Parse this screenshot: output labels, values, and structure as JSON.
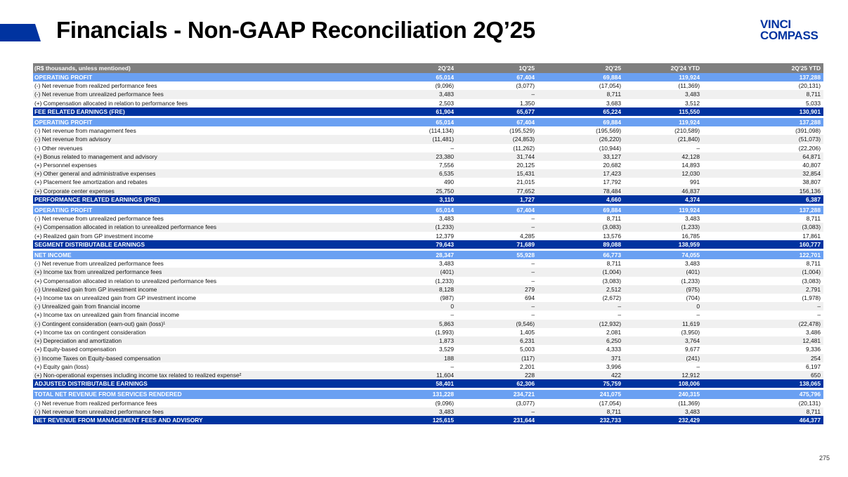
{
  "title": "Financials - Non-GAAP Reconciliation 2Q’25",
  "logo": {
    "line1": "VINCI",
    "line2": "COMPASS"
  },
  "page_number": "275",
  "colors": {
    "brand": "#0033a0",
    "highlight": "#6aa0f2",
    "header": "#7f7f7f"
  },
  "table": {
    "headers": [
      "(R$ thousands, unless mentioned)",
      "2Q'24",
      "1Q'25",
      "2Q'25",
      "2Q'24 YTD",
      "2Q'25 YTD"
    ],
    "rows": [
      {
        "type": "hl",
        "cells": [
          "OPERATING PROFIT",
          "65,014",
          "67,404",
          "69,884",
          "119,924",
          "137,288"
        ]
      },
      {
        "type": "odd",
        "cells": [
          "(-) Net revenue from realized performance fees",
          "(9,096)",
          "(3,077)",
          "(17,054)",
          "(11,369)",
          "(20,131)"
        ]
      },
      {
        "type": "even",
        "cells": [
          "(-) Net revenue from unrealized performance fees",
          "3,483",
          "–",
          "8,711",
          "3,483",
          "8,711"
        ]
      },
      {
        "type": "odd",
        "cells": [
          "(+) Compensation allocated in relation to performance fees",
          "2,503",
          "1,350",
          "3,683",
          "3,512",
          "5,033"
        ]
      },
      {
        "type": "total",
        "cells": [
          "FEE RELATED EARNINGS (FRE)",
          "61,904",
          "65,677",
          "65,224",
          "115,550",
          "130,901"
        ]
      },
      {
        "type": "gap",
        "cells": []
      },
      {
        "type": "hl",
        "cells": [
          "OPERATING PROFIT",
          "65,014",
          "67,404",
          "69,884",
          "119,924",
          "137,288"
        ]
      },
      {
        "type": "odd",
        "cells": [
          "(-) Net revenue from management fees",
          "(114,134)",
          "(195,529)",
          "(195,569)",
          "(210,589)",
          "(391,098)"
        ]
      },
      {
        "type": "even",
        "cells": [
          "(-) Net revenue from advisory",
          "(11,481)",
          "(24,853)",
          "(26,220)",
          "(21,840)",
          "(51,073)"
        ]
      },
      {
        "type": "odd",
        "cells": [
          "(-) Other revenues",
          "–",
          "(11,262)",
          "(10,944)",
          "–",
          "(22,206)"
        ]
      },
      {
        "type": "even",
        "cells": [
          "(+) Bonus related to management and advisory",
          "23,380",
          "31,744",
          "33,127",
          "42,128",
          "64,871"
        ]
      },
      {
        "type": "odd",
        "cells": [
          "(+) Personnel expenses",
          "7,556",
          "20,125",
          "20,682",
          "14,893",
          "40,807"
        ]
      },
      {
        "type": "even",
        "cells": [
          "(+) Other general and administrative expenses",
          "6,535",
          "15,431",
          "17,423",
          "12,030",
          "32,854"
        ]
      },
      {
        "type": "odd",
        "cells": [
          "(+) Placement fee amortization and rebates",
          "490",
          "21,015",
          "17,792",
          "991",
          "38,807"
        ]
      },
      {
        "type": "even",
        "cells": [
          "(+) Corporate center expenses",
          "25,750",
          "77,652",
          "78,484",
          "46,837",
          "156,136"
        ]
      },
      {
        "type": "total",
        "cells": [
          "PERFORMANCE RELATED EARNINGS (PRE)",
          "3,110",
          "1,727",
          "4,660",
          "4,374",
          "6,387"
        ]
      },
      {
        "type": "gap",
        "cells": []
      },
      {
        "type": "hl",
        "cells": [
          "OPERATING PROFIT",
          "65,014",
          "67,404",
          "69,884",
          "119,924",
          "137,288"
        ]
      },
      {
        "type": "odd",
        "cells": [
          "(-) Net revenue from unrealized performance fees",
          "3,483",
          "–",
          "8,711",
          "3,483",
          "8,711"
        ]
      },
      {
        "type": "even",
        "cells": [
          "(+) Compensation allocated in relation to unrealized performance fees",
          "(1,233)",
          "–",
          "(3,083)",
          "(1,233)",
          "(3,083)"
        ]
      },
      {
        "type": "odd",
        "cells": [
          "(+) Realized gain from GP investment income",
          "12,379",
          "4,285",
          "13,576",
          "16,785",
          "17,861"
        ]
      },
      {
        "type": "total",
        "cells": [
          "SEGMENT DISTRIBUTABLE EARNINGS",
          "79,643",
          "71,689",
          "89,088",
          "138,959",
          "160,777"
        ]
      },
      {
        "type": "gap",
        "cells": []
      },
      {
        "type": "hl",
        "cells": [
          "NET INCOME",
          "28,347",
          "55,928",
          "66,773",
          "74,055",
          "122,701"
        ]
      },
      {
        "type": "odd",
        "cells": [
          "(-) Net revenue from unrealized performance fees",
          "3,483",
          "–",
          "8,711",
          "3,483",
          "8,711"
        ]
      },
      {
        "type": "even",
        "cells": [
          "(+) Income tax from unrealized performance fees",
          "(401)",
          "–",
          "(1,004)",
          "(401)",
          "(1,004)"
        ]
      },
      {
        "type": "odd",
        "cells": [
          "(+) Compensation allocated in relation to unrealized performance fees",
          "(1,233)",
          "–",
          "(3,083)",
          "(1,233)",
          "(3,083)"
        ]
      },
      {
        "type": "even",
        "cells": [
          "(-) Unrealized gain from GP investment income",
          "8,128",
          "279",
          "2,512",
          "(975)",
          "2,791"
        ]
      },
      {
        "type": "odd",
        "cells": [
          "(+) Income tax on unrealized gain from GP investment income",
          "(987)",
          "694",
          "(2,672)",
          "(704)",
          "(1,978)"
        ]
      },
      {
        "type": "even",
        "cells": [
          "(-) Unrealized gain from financial income",
          "0",
          "–",
          "–",
          "0",
          "–"
        ]
      },
      {
        "type": "odd",
        "cells": [
          "(+) Income tax on unrealized gain from financial income",
          "–",
          "–",
          "–",
          "–",
          "–"
        ]
      },
      {
        "type": "even",
        "cells": [
          "(-) Contingent consideration (earn-out) gain (loss)¹",
          "5,863",
          "(9,546)",
          "(12,932)",
          "11,619",
          "(22,478)"
        ]
      },
      {
        "type": "odd",
        "cells": [
          "(+) Income tax on contingent consideration",
          "(1,993)",
          "1,405",
          "2,081",
          "(3,950)",
          "3,486"
        ]
      },
      {
        "type": "even",
        "cells": [
          "(+) Depreciation and amortization",
          "1,873",
          "6,231",
          "6,250",
          "3,764",
          "12,481"
        ]
      },
      {
        "type": "odd",
        "cells": [
          "(+) Equity-based compensation",
          "3,529",
          "5,003",
          "4,333",
          "9,677",
          "9,336"
        ]
      },
      {
        "type": "even",
        "cells": [
          "(-) Income Taxes on Equity-based compensation",
          "188",
          "(117)",
          "371",
          "(241)",
          "254"
        ]
      },
      {
        "type": "odd",
        "cells": [
          "(+) Equity gain (loss)",
          "–",
          "2,201",
          "3,996",
          "–",
          "6,197"
        ]
      },
      {
        "type": "even",
        "cells": [
          "(+) Non-operational expenses including income tax related to realized expense²",
          "11,604",
          "228",
          "422",
          "12,912",
          "650"
        ]
      },
      {
        "type": "total",
        "cells": [
          "ADJUSTED DISTRIBUTABLE EARNINGS",
          "58,401",
          "62,306",
          "75,759",
          "108,006",
          "138,065"
        ]
      },
      {
        "type": "gap",
        "cells": []
      },
      {
        "type": "hl",
        "cells": [
          "TOTAL NET REVENUE FROM SERVICES RENDERED",
          "131,228",
          "234,721",
          "241,075",
          "240,315",
          "475,796"
        ]
      },
      {
        "type": "odd",
        "cells": [
          "(-) Net revenue from realized performance fees",
          "(9,096)",
          "(3,077)",
          "(17,054)",
          "(11,369)",
          "(20,131)"
        ]
      },
      {
        "type": "even",
        "cells": [
          "(-) Net revenue from unrealized performance fees",
          "3,483",
          "–",
          "8,711",
          "3,483",
          "8,711"
        ]
      },
      {
        "type": "total",
        "cells": [
          "NET REVENUE FROM MANAGEMENT FEES AND ADVISORY",
          "125,615",
          "231,644",
          "232,733",
          "232,429",
          "464,377"
        ]
      }
    ]
  }
}
